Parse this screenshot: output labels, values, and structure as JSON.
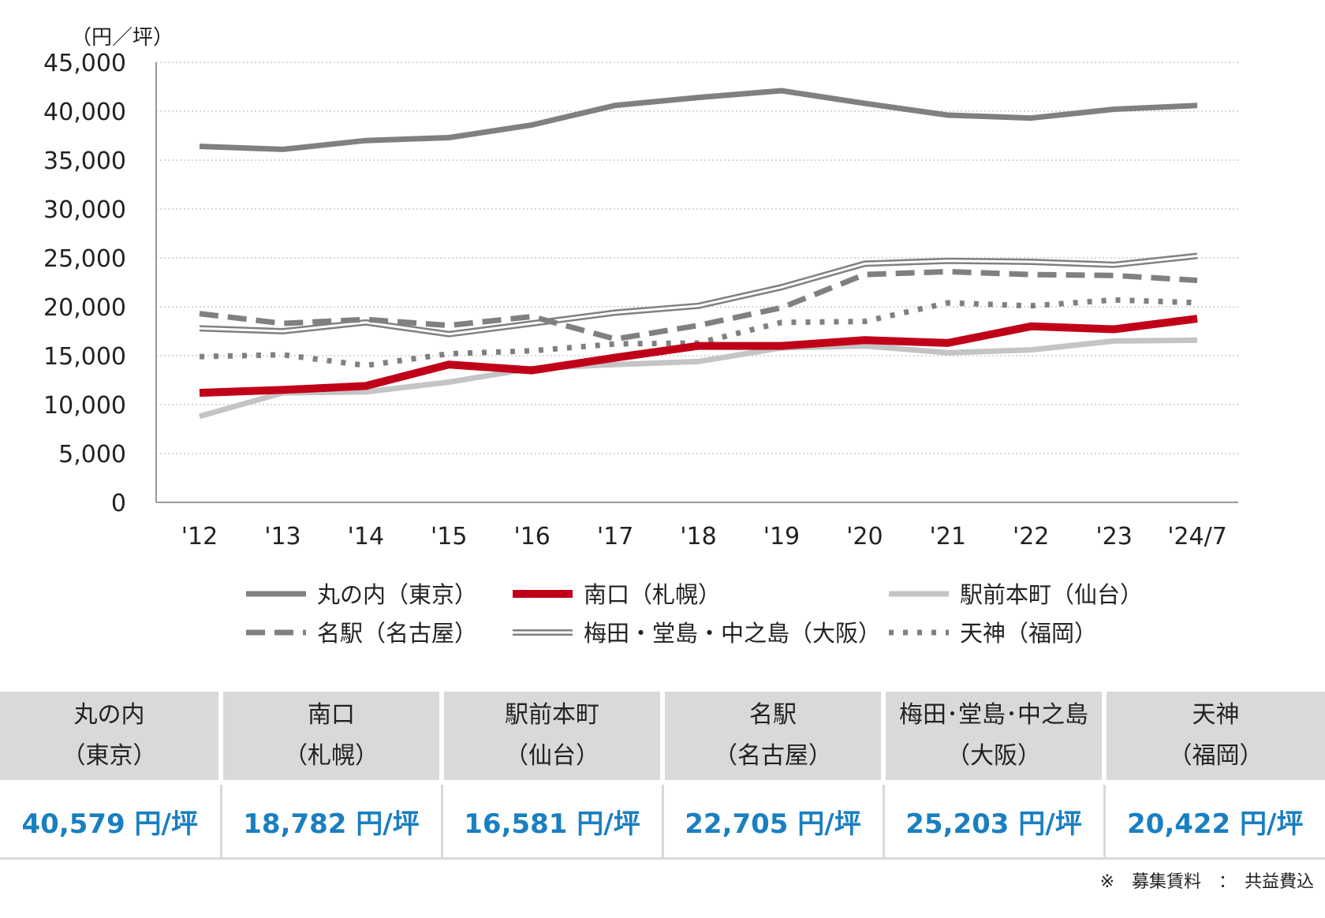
{
  "chart_data": {
    "type": "line",
    "ylabel": "（円／坪）",
    "ylim": [
      0,
      45000
    ],
    "yticks": [
      0,
      5000,
      10000,
      15000,
      20000,
      25000,
      30000,
      35000,
      40000,
      45000
    ],
    "ytick_labels": [
      "0",
      "5,000",
      "10,000",
      "15,000",
      "20,000",
      "25,000",
      "30,000",
      "35,000",
      "40,000",
      "45,000"
    ],
    "grid": true,
    "legend_position": "bottom",
    "categories": [
      "'12",
      "'13",
      "'14",
      "'15",
      "'16",
      "'17",
      "'18",
      "'19",
      "'20",
      "'21",
      "'22",
      "'23",
      "'24/7"
    ],
    "series": [
      {
        "name": "丸の内（東京）",
        "style": "solid-thick",
        "color": "#808080",
        "values": [
          36400,
          36100,
          37000,
          37300,
          38600,
          40600,
          41400,
          42100,
          40800,
          39600,
          39300,
          40200,
          40579
        ]
      },
      {
        "name": "南口（札幌）",
        "style": "solid-bold",
        "color": "#c00018",
        "values": [
          11200,
          11500,
          11900,
          14100,
          13500,
          14800,
          16000,
          16000,
          16600,
          16300,
          18000,
          17700,
          18782
        ]
      },
      {
        "name": "駅前本町（仙台）",
        "style": "solid-light",
        "color": "#c4c4c4",
        "values": [
          8800,
          11200,
          11300,
          12300,
          13700,
          14100,
          14400,
          15800,
          16000,
          15300,
          15600,
          16500,
          16581
        ]
      },
      {
        "name": "名駅（名古屋）",
        "style": "dashed",
        "color": "#808080",
        "values": [
          19300,
          18300,
          18700,
          18100,
          19000,
          16700,
          18100,
          19900,
          23300,
          23600,
          23300,
          23200,
          22705
        ]
      },
      {
        "name": "梅田・堂島・中之島（大阪）",
        "style": "double",
        "color": "#808080",
        "values": [
          17800,
          17500,
          18400,
          17200,
          18300,
          19400,
          20100,
          22000,
          24400,
          24700,
          24600,
          24300,
          25203
        ]
      },
      {
        "name": "天神（福岡）",
        "style": "dotted",
        "color": "#808080",
        "values": [
          14900,
          15100,
          14000,
          15200,
          15500,
          16200,
          16300,
          18400,
          18500,
          20400,
          20100,
          20700,
          20422
        ]
      }
    ]
  },
  "table": {
    "headers": [
      {
        "line1": "丸の内",
        "line2": "（東京）"
      },
      {
        "line1": "南口",
        "line2": "（札幌）"
      },
      {
        "line1": "駅前本町",
        "line2": "（仙台）"
      },
      {
        "line1": "名駅",
        "line2": "（名古屋）"
      },
      {
        "line1": "梅田･堂島･中之島",
        "line2": "（大阪）"
      },
      {
        "line1": "天神",
        "line2": "（福岡）"
      }
    ],
    "values": [
      "40,579 円/坪",
      "18,782 円/坪",
      "16,581 円/坪",
      "22,705 円/坪",
      "25,203 円/坪",
      "20,422 円/坪"
    ]
  },
  "footnote": "※　募集賃料　：　共益費込"
}
